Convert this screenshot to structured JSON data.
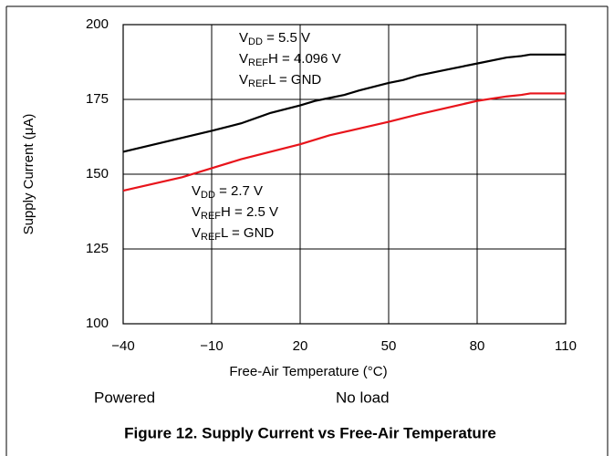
{
  "chart_data": {
    "type": "line",
    "caption": "Figure 12. Supply Current vs Free-Air Temperature",
    "xlabel": "Free-Air Temperature (°C)",
    "ylabel": "Supply Current (μA)",
    "notes": [
      "Powered",
      "No load"
    ],
    "xlim": [
      -40,
      110
    ],
    "ylim": [
      100,
      200
    ],
    "xticks": [
      {
        "value": -40,
        "label": "−40"
      },
      {
        "value": -10,
        "label": "−10"
      },
      20,
      50,
      80,
      110
    ],
    "yticks": [
      100,
      125,
      150,
      175,
      200
    ],
    "grid": true,
    "series": [
      {
        "color": "#000000",
        "x": [
          -40,
          -25,
          -10,
          0,
          10,
          20,
          25,
          30,
          35,
          40,
          50,
          55,
          60,
          70,
          80,
          90,
          95,
          98,
          110
        ],
        "values": [
          157.5,
          161,
          164.5,
          167,
          170.5,
          173,
          174.5,
          175.5,
          176.5,
          178,
          180.5,
          181.5,
          183,
          185,
          187,
          189,
          189.5,
          190,
          190
        ]
      },
      {
        "color": "#e8141b",
        "x": [
          -40,
          -20,
          -10,
          0,
          20,
          30,
          50,
          60,
          80,
          90,
          95,
          98,
          110
        ],
        "values": [
          144.5,
          149,
          152,
          155,
          160,
          163,
          167.5,
          170,
          174.5,
          176,
          176.5,
          177,
          177
        ]
      }
    ],
    "annotations": [
      {
        "lines": [
          [
            {
              "t": "V"
            },
            {
              "sub": "DD"
            },
            {
              "t": " = 5.5 V"
            }
          ],
          [
            {
              "t": "V"
            },
            {
              "sub": "REF"
            },
            {
              "t": "H = 4.096 V"
            }
          ],
          [
            {
              "t": "V"
            },
            {
              "sub": "REF"
            },
            {
              "t": "L = GND"
            }
          ]
        ]
      },
      {
        "lines": [
          [
            {
              "t": "V"
            },
            {
              "sub": "DD"
            },
            {
              "t": " = 2.7 V"
            }
          ],
          [
            {
              "t": "V"
            },
            {
              "sub": "REF"
            },
            {
              "t": "H = 2.5 V"
            }
          ],
          [
            {
              "t": "V"
            },
            {
              "sub": "REF"
            },
            {
              "t": "L = GND"
            }
          ]
        ]
      }
    ]
  }
}
